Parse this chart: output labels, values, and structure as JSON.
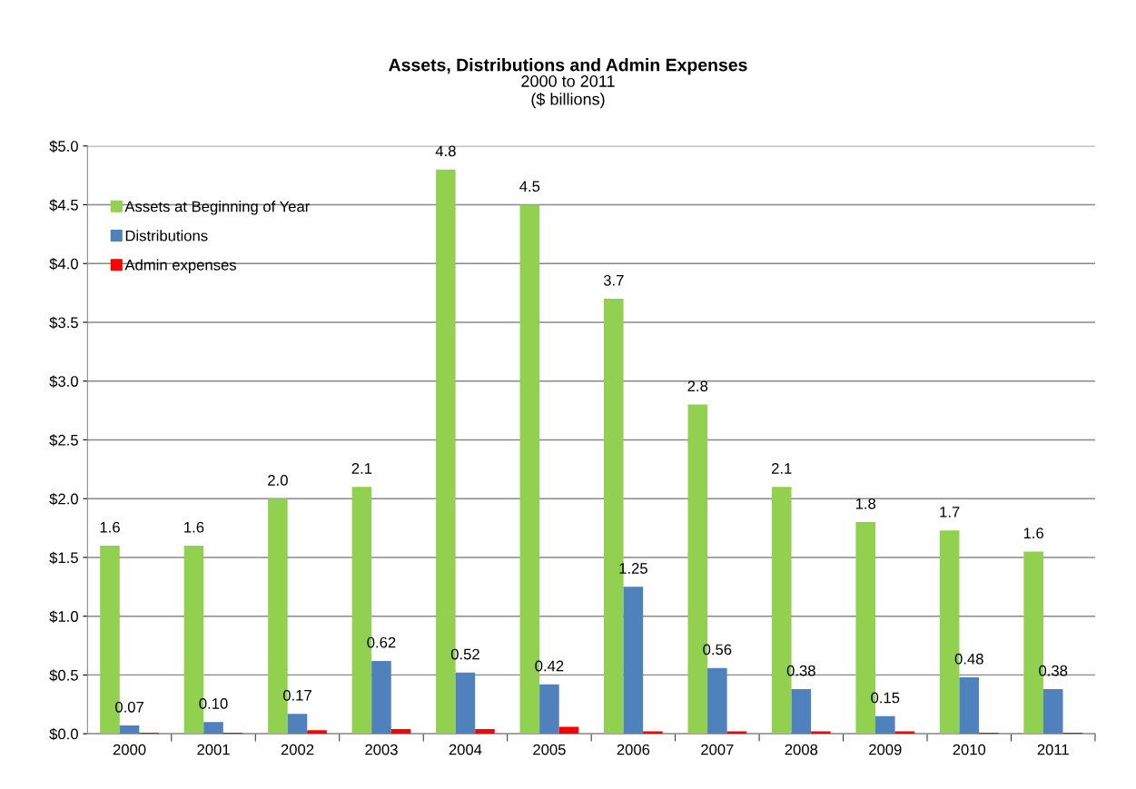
{
  "chart_data": {
    "type": "bar",
    "title": "Assets, Distributions and Admin Expenses",
    "subtitle": "2000 to 2011\n($ billions)",
    "categories": [
      "2000",
      "2001",
      "2002",
      "2003",
      "2004",
      "2005",
      "2006",
      "2007",
      "2008",
      "2009",
      "2010",
      "2011"
    ],
    "series": [
      {
        "name": "Assets at Beginning of Year",
        "color": "#92d050",
        "values": [
          1.6,
          1.6,
          2.0,
          2.1,
          4.8,
          4.5,
          3.7,
          2.8,
          2.1,
          1.8,
          1.73,
          1.55
        ],
        "value_labels": [
          "1.6",
          "1.6",
          "2.0",
          "2.1",
          "4.8",
          "4.5",
          "3.7",
          "2.8",
          "2.1",
          "1.8",
          "1.7",
          "1.6"
        ]
      },
      {
        "name": "Distributions",
        "color": "#4f81bd",
        "values": [
          0.07,
          0.1,
          0.17,
          0.62,
          0.52,
          0.42,
          1.25,
          0.56,
          0.38,
          0.15,
          0.48,
          0.38
        ],
        "value_labels": [
          "0.07",
          "0.10",
          "0.17",
          "0.62",
          "0.52",
          "0.42",
          "1.25",
          "0.56",
          "0.38",
          "0.15",
          "0.48",
          "0.38"
        ]
      },
      {
        "name": "Admin expenses",
        "color": "#ff0000",
        "values": [
          0.01,
          0.01,
          0.03,
          0.04,
          0.04,
          0.06,
          0.02,
          0.02,
          0.02,
          0.02,
          0.01,
          0.01
        ]
      }
    ],
    "ylim": [
      0,
      5
    ],
    "yticks": [
      {
        "value": 0,
        "label": "$0.0"
      },
      {
        "value": 0.5,
        "label": "$0.5"
      },
      {
        "value": 1,
        "label": "$1.0"
      },
      {
        "value": 1.5,
        "label": "$1.5"
      },
      {
        "value": 2,
        "label": "$2.0"
      },
      {
        "value": 2.5,
        "label": "$2.5"
      },
      {
        "value": 3,
        "label": "$3.0"
      },
      {
        "value": 3.5,
        "label": "$3.5"
      },
      {
        "value": 4,
        "label": "$4.0"
      },
      {
        "value": 4.5,
        "label": "$4.5"
      },
      {
        "value": 5,
        "label": "$5.0"
      }
    ],
    "grid": "y",
    "legend": "top left"
  }
}
